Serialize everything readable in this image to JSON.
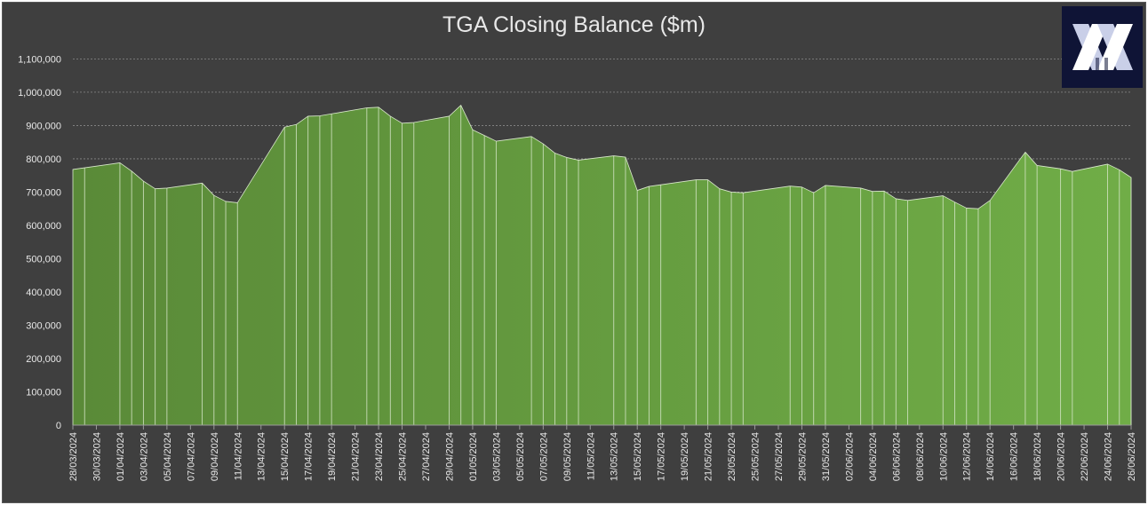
{
  "colors": {
    "background": "#3f3f3f",
    "gridline": "#8a8a8a",
    "area_fill_dark": "#5a8a38",
    "area_fill_light": "#70ad47",
    "separator": "#d9e8cc",
    "text": "#e8e8e8",
    "logo_bg": "#0f1436"
  },
  "logo": {
    "icon": "x-logo-icon"
  },
  "chart_data": {
    "type": "area",
    "title": "TGA Closing Balance ($m)",
    "xlabel": "",
    "ylabel": "",
    "ylim": [
      0,
      1100000
    ],
    "yticks": [
      "0",
      "100,000",
      "200,000",
      "300,000",
      "400,000",
      "500,000",
      "600,000",
      "700,000",
      "800,000",
      "900,000",
      "1,000,000",
      "1,100,000"
    ],
    "grid": true,
    "legend": "none",
    "x_tick_labels": [
      "28/03/2024",
      "30/03/2024",
      "01/04/2024",
      "03/04/2024",
      "05/04/2024",
      "07/04/2024",
      "09/04/2024",
      "11/04/2024",
      "13/04/2024",
      "15/04/2024",
      "17/04/2024",
      "19/04/2024",
      "21/04/2024",
      "23/04/2024",
      "25/04/2024",
      "27/04/2024",
      "29/04/2024",
      "01/05/2024",
      "03/05/2024",
      "05/05/2024",
      "07/05/2024",
      "09/05/2024",
      "11/05/2024",
      "13/05/2024",
      "15/05/2024",
      "17/05/2024",
      "19/05/2024",
      "21/05/2024",
      "23/05/2024",
      "25/05/2024",
      "27/05/2024",
      "29/05/2024",
      "31/05/2024",
      "02/06/2024",
      "04/06/2024",
      "06/06/2024",
      "08/06/2024",
      "10/06/2024",
      "12/06/2024",
      "14/06/2024",
      "16/06/2024",
      "18/06/2024",
      "20/06/2024",
      "22/06/2024",
      "24/06/2024",
      "26/06/2024"
    ],
    "points": [
      {
        "x": "28/03/2024",
        "y": 768000
      },
      {
        "x": "29/03/2024",
        "y": 773000
      },
      {
        "x": "01/04/2024",
        "y": 788000
      },
      {
        "x": "02/04/2024",
        "y": 763000
      },
      {
        "x": "03/04/2024",
        "y": 733000
      },
      {
        "x": "04/04/2024",
        "y": 710000
      },
      {
        "x": "05/04/2024",
        "y": 712000
      },
      {
        "x": "08/04/2024",
        "y": 727000
      },
      {
        "x": "09/04/2024",
        "y": 690000
      },
      {
        "x": "10/04/2024",
        "y": 672000
      },
      {
        "x": "11/04/2024",
        "y": 668000
      },
      {
        "x": "15/04/2024",
        "y": 895000
      },
      {
        "x": "16/04/2024",
        "y": 903000
      },
      {
        "x": "17/04/2024",
        "y": 928000
      },
      {
        "x": "18/04/2024",
        "y": 929000
      },
      {
        "x": "19/04/2024",
        "y": 935000
      },
      {
        "x": "22/04/2024",
        "y": 953000
      },
      {
        "x": "23/04/2024",
        "y": 955000
      },
      {
        "x": "24/04/2024",
        "y": 928000
      },
      {
        "x": "25/04/2024",
        "y": 907000
      },
      {
        "x": "26/04/2024",
        "y": 909000
      },
      {
        "x": "29/04/2024",
        "y": 928000
      },
      {
        "x": "30/04/2024",
        "y": 961000
      },
      {
        "x": "01/05/2024",
        "y": 887000
      },
      {
        "x": "02/05/2024",
        "y": 870000
      },
      {
        "x": "03/05/2024",
        "y": 853000
      },
      {
        "x": "06/05/2024",
        "y": 867000
      },
      {
        "x": "07/05/2024",
        "y": 845000
      },
      {
        "x": "08/05/2024",
        "y": 817000
      },
      {
        "x": "09/05/2024",
        "y": 804000
      },
      {
        "x": "10/05/2024",
        "y": 796000
      },
      {
        "x": "13/05/2024",
        "y": 809000
      },
      {
        "x": "14/05/2024",
        "y": 805000
      },
      {
        "x": "15/05/2024",
        "y": 705000
      },
      {
        "x": "16/05/2024",
        "y": 717000
      },
      {
        "x": "17/05/2024",
        "y": 722000
      },
      {
        "x": "20/05/2024",
        "y": 737000
      },
      {
        "x": "21/05/2024",
        "y": 737000
      },
      {
        "x": "22/05/2024",
        "y": 710000
      },
      {
        "x": "23/05/2024",
        "y": 700000
      },
      {
        "x": "24/05/2024",
        "y": 698000
      },
      {
        "x": "28/05/2024",
        "y": 718000
      },
      {
        "x": "29/05/2024",
        "y": 715000
      },
      {
        "x": "30/05/2024",
        "y": 698000
      },
      {
        "x": "31/05/2024",
        "y": 720000
      },
      {
        "x": "03/06/2024",
        "y": 712000
      },
      {
        "x": "04/06/2024",
        "y": 702000
      },
      {
        "x": "05/06/2024",
        "y": 703000
      },
      {
        "x": "06/06/2024",
        "y": 680000
      },
      {
        "x": "07/06/2024",
        "y": 675000
      },
      {
        "x": "10/06/2024",
        "y": 689000
      },
      {
        "x": "11/06/2024",
        "y": 670000
      },
      {
        "x": "12/06/2024",
        "y": 652000
      },
      {
        "x": "13/06/2024",
        "y": 650000
      },
      {
        "x": "14/06/2024",
        "y": 675000
      },
      {
        "x": "17/06/2024",
        "y": 820000
      },
      {
        "x": "18/06/2024",
        "y": 780000
      },
      {
        "x": "20/06/2024",
        "y": 770000
      },
      {
        "x": "21/06/2024",
        "y": 762000
      },
      {
        "x": "24/06/2024",
        "y": 784000
      },
      {
        "x": "25/06/2024",
        "y": 767000
      },
      {
        "x": "26/06/2024",
        "y": 744000
      }
    ]
  }
}
